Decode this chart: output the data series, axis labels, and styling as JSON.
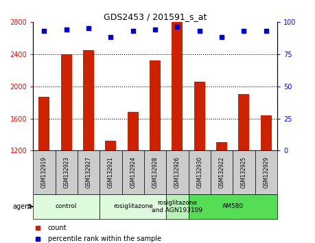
{
  "title": "GDS2453 / 201591_s_at",
  "samples": [
    "GSM132919",
    "GSM132923",
    "GSM132927",
    "GSM132921",
    "GSM132924",
    "GSM132928",
    "GSM132926",
    "GSM132930",
    "GSM132922",
    "GSM132925",
    "GSM132929"
  ],
  "counts": [
    1870,
    2400,
    2450,
    1320,
    1680,
    2320,
    2820,
    2060,
    1310,
    1900,
    1640
  ],
  "percentiles": [
    93,
    94,
    95,
    88,
    93,
    94,
    96,
    93,
    88,
    93,
    93
  ],
  "ylim_left": [
    1200,
    2800
  ],
  "ylim_right": [
    0,
    100
  ],
  "yticks_left": [
    1200,
    1600,
    2000,
    2400,
    2800
  ],
  "yticks_right": [
    0,
    25,
    50,
    75,
    100
  ],
  "grid_lines": [
    1600,
    2000,
    2400
  ],
  "groups": [
    {
      "label": "control",
      "start": 0,
      "end": 3,
      "color": "#ddfadd"
    },
    {
      "label": "rosiglitazone",
      "start": 3,
      "end": 6,
      "color": "#ddfadd"
    },
    {
      "label": "rosiglitazone\nand AGN193109",
      "start": 6,
      "end": 7,
      "color": "#bbf0bb"
    },
    {
      "label": "AM580",
      "start": 7,
      "end": 11,
      "color": "#55dd55"
    }
  ],
  "bar_color": "#cc2200",
  "dot_color": "#0000cc",
  "bar_width": 0.5,
  "tick_bg_color": "#cccccc",
  "bg_color": "#ffffff"
}
